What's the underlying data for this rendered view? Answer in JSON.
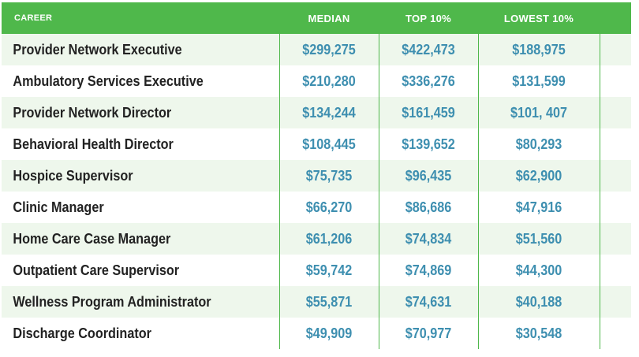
{
  "header": {
    "career": "CAREER",
    "median": "MEDIAN",
    "top10": "TOP 10%",
    "lowest10": "LOWEST 10%"
  },
  "rows": [
    {
      "career": "Provider Network Executive",
      "median": "$299,275",
      "top10": "$422,473",
      "lowest10": "$188,975"
    },
    {
      "career": "Ambulatory Services Executive",
      "median": "$210,280",
      "top10": "$336,276",
      "lowest10": "$131,599"
    },
    {
      "career": "Provider Network Director",
      "median": "$134,244",
      "top10": "$161,459",
      "lowest10": "$101, 407"
    },
    {
      "career": "Behavioral Health Director",
      "median": "$108,445",
      "top10": "$139,652",
      "lowest10": "$80,293"
    },
    {
      "career": "Hospice Supervisor",
      "median": "$75,735",
      "top10": "$96,435",
      "lowest10": "$62,900"
    },
    {
      "career": "Clinic Manager",
      "median": "$66,270",
      "top10": "$86,686",
      "lowest10": "$47,916"
    },
    {
      "career": "Home Care Case Manager",
      "median": "$61,206",
      "top10": "$74,834",
      "lowest10": "$51,560"
    },
    {
      "career": "Outpatient Care Supervisor",
      "median": "$59,742",
      "top10": "$74,869",
      "lowest10": "$44,300"
    },
    {
      "career": "Wellness Program Administrator",
      "median": "$55,871",
      "top10": "$74,631",
      "lowest10": "$40,188"
    },
    {
      "career": "Discharge Coordinator",
      "median": "$49,909",
      "top10": "$70,977",
      "lowest10": "$30,548"
    }
  ],
  "colors": {
    "header_bg": "#4fb84b",
    "value_text": "#3e8fb0",
    "row_alt": "#eef7ec"
  }
}
